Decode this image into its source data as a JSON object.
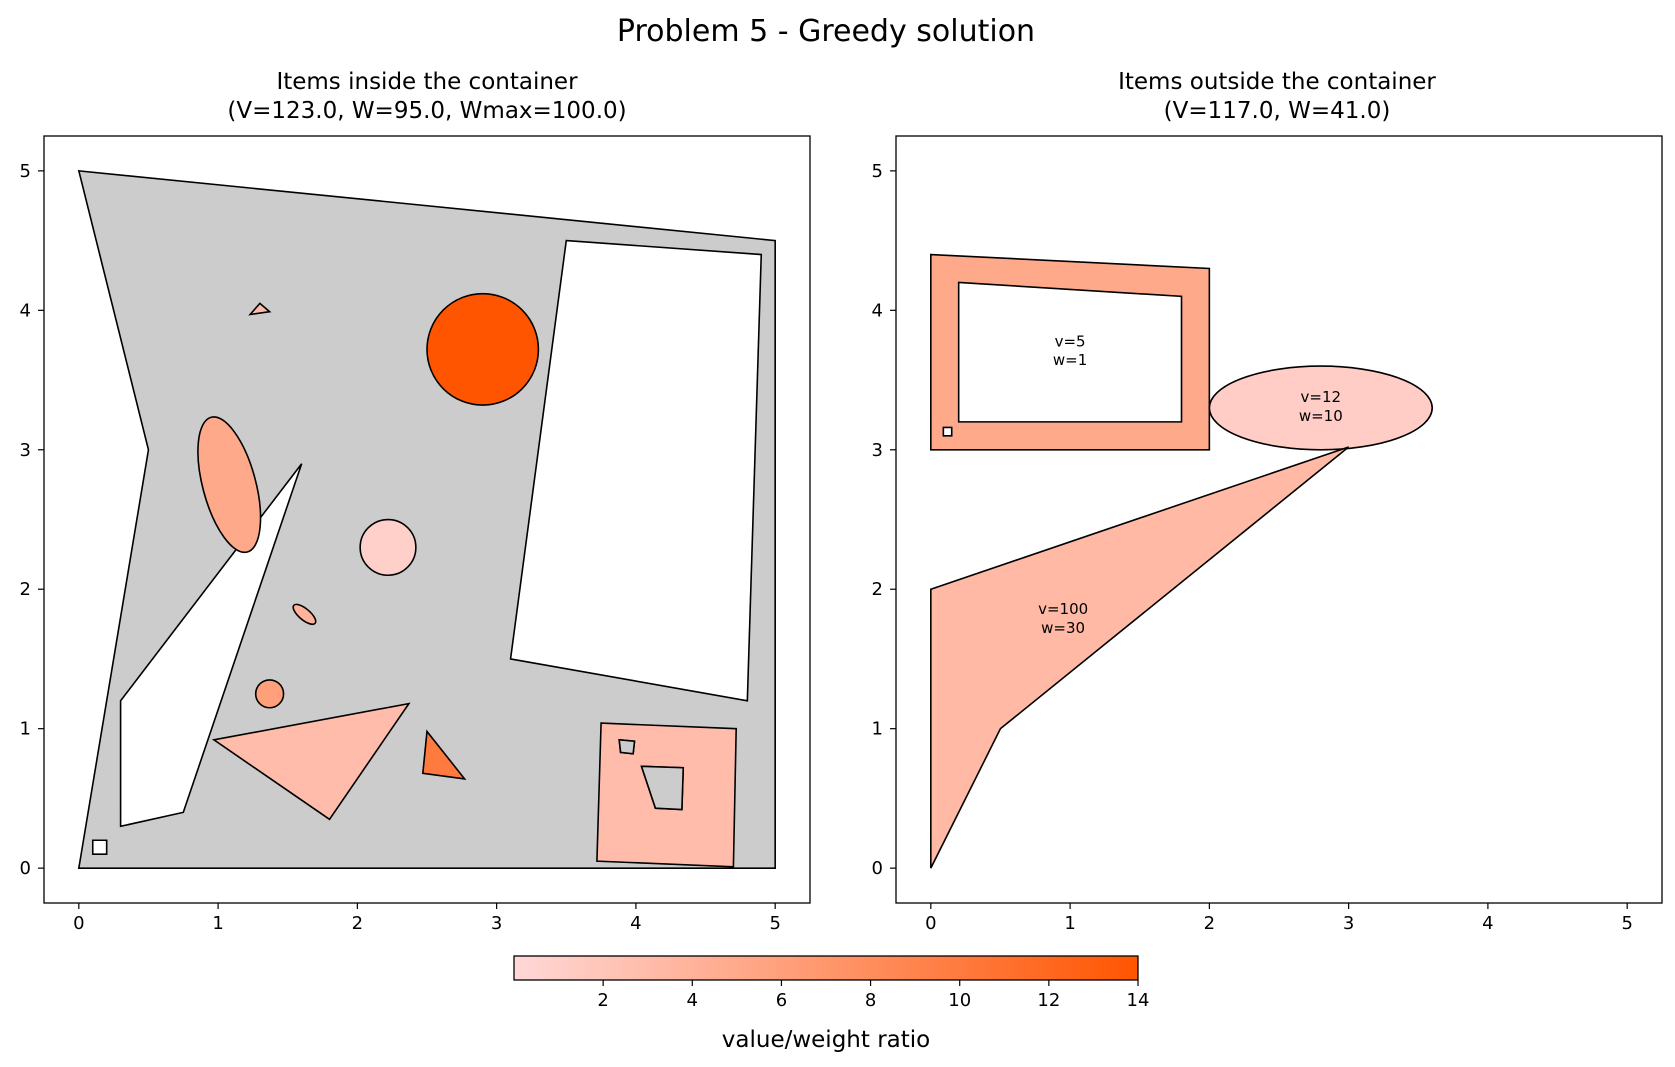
{
  "title": "Problem 5 - Greedy solution",
  "colorbar": {
    "label": "value/weight ratio",
    "ticks": [
      2,
      4,
      6,
      8,
      10,
      12,
      14
    ],
    "range": [
      0,
      14
    ],
    "color_low": "#ffd8d8",
    "color_high": "#ff5500"
  },
  "chart_data": [
    {
      "type": "other",
      "title_line1": "Items inside the container",
      "title_line2": "(V=123.0, W=95.0, Wmax=100.0)",
      "xlim": [
        -0.25,
        5.25
      ],
      "ylim": [
        -0.25,
        5.25
      ],
      "xticks": [
        0,
        1,
        2,
        3,
        4,
        5
      ],
      "yticks": [
        0,
        1,
        2,
        3,
        4,
        5
      ],
      "container": {
        "fill": "#cccccc",
        "outer": [
          [
            0,
            5
          ],
          [
            0.5,
            3
          ],
          [
            0,
            0
          ],
          [
            5,
            0
          ],
          [
            5,
            4.5
          ]
        ],
        "holes": [
          [
            [
              0.3,
              1.2
            ],
            [
              0.3,
              0.3
            ],
            [
              0.75,
              0.4
            ],
            [
              1.6,
              2.9
            ]
          ],
          [
            [
              3.5,
              4.5
            ],
            [
              4.9,
              4.4
            ],
            [
              4.8,
              1.2
            ],
            [
              3.1,
              1.5
            ]
          ]
        ]
      },
      "items": [
        {
          "shape": "circle",
          "center": [
            2.9,
            3.72
          ],
          "r": 0.4,
          "ratio": 14
        },
        {
          "shape": "circle",
          "center": [
            2.22,
            2.3
          ],
          "r": 0.2,
          "ratio": 1
        },
        {
          "shape": "circle",
          "center": [
            1.37,
            1.25
          ],
          "r": 0.1,
          "ratio": 6
        },
        {
          "shape": "ellipse",
          "center": [
            1.08,
            2.75
          ],
          "rx": 0.19,
          "ry": 0.5,
          "angle": 15,
          "ratio": 5
        },
        {
          "shape": "ellipse",
          "center": [
            1.62,
            1.82
          ],
          "rx": 0.1,
          "ry": 0.04,
          "angle": -40,
          "ratio": 4
        },
        {
          "shape": "polygon",
          "points": [
            [
              1.23,
              3.97
            ],
            [
              1.37,
              3.99
            ],
            [
              1.3,
              4.05
            ]
          ],
          "ratio": 3
        },
        {
          "shape": "polygon",
          "points": [
            [
              0.97,
              0.92
            ],
            [
              2.37,
              1.18
            ],
            [
              1.8,
              0.35
            ]
          ],
          "ratio": 3
        },
        {
          "shape": "polygon",
          "points": [
            [
              2.5,
              0.98
            ],
            [
              2.47,
              0.68
            ],
            [
              2.77,
              0.64
            ]
          ],
          "ratio": 10
        },
        {
          "shape": "polygon",
          "points": [
            [
              3.75,
              1.04
            ],
            [
              4.72,
              1.0
            ],
            [
              4.7,
              0.01
            ],
            [
              3.72,
              0.05
            ]
          ],
          "ratio": 3,
          "holes": [
            [
              [
                3.88,
                0.92
              ],
              [
                3.99,
                0.91
              ],
              [
                3.98,
                0.82
              ],
              [
                3.89,
                0.83
              ]
            ],
            [
              [
                4.04,
                0.73
              ],
              [
                4.34,
                0.72
              ],
              [
                4.33,
                0.42
              ],
              [
                4.14,
                0.43
              ]
            ]
          ]
        },
        {
          "shape": "polygon",
          "points": [
            [
              4.04,
              0.73
            ],
            [
              4.34,
              0.72
            ],
            [
              4.33,
              0.42
            ],
            [
              4.14,
              0.43
            ]
          ],
          "fill": "#cccccc"
        },
        {
          "shape": "polygon",
          "points": [
            [
              3.88,
              0.92
            ],
            [
              3.99,
              0.91
            ],
            [
              3.98,
              0.82
            ],
            [
              3.89,
              0.83
            ]
          ],
          "fill": "#cccccc"
        },
        {
          "shape": "polygon",
          "points": [
            [
              0.1,
              0.2
            ],
            [
              0.2,
              0.2
            ],
            [
              0.2,
              0.1
            ],
            [
              0.1,
              0.1
            ]
          ],
          "fill": "#ffffff"
        }
      ]
    },
    {
      "type": "other",
      "title_line1": "Items outside the container",
      "title_line2": "(V=117.0, W=41.0)",
      "xlim": [
        -0.25,
        5.25
      ],
      "ylim": [
        -0.25,
        5.25
      ],
      "xticks": [
        0,
        1,
        2,
        3,
        4,
        5
      ],
      "yticks": [
        0,
        1,
        2,
        3,
        4,
        5
      ],
      "items": [
        {
          "shape": "polygon",
          "points": [
            [
              0,
              4.4
            ],
            [
              2,
              4.3
            ],
            [
              2,
              3
            ],
            [
              0,
              3
            ]
          ],
          "ratio": 5,
          "holes": [
            [
              [
                0.2,
                4.2
              ],
              [
                1.8,
                4.1
              ],
              [
                1.8,
                3.2
              ],
              [
                0.2,
                3.2
              ]
            ]
          ]
        },
        {
          "shape": "ellipse",
          "center": [
            2.8,
            3.3
          ],
          "rx": 0.8,
          "ry": 0.3,
          "angle": 0,
          "ratio": 1.2
        },
        {
          "shape": "polygon",
          "points": [
            [
              0,
              2
            ],
            [
              3,
              3.02
            ],
            [
              0.5,
              1
            ],
            [
              0,
              0
            ]
          ],
          "ratio": 3.33
        },
        {
          "shape": "polygon",
          "points": [
            [
              0.09,
              3.16
            ],
            [
              0.15,
              3.16
            ],
            [
              0.15,
              3.1
            ],
            [
              0.09,
              3.1
            ]
          ],
          "fill": "#ffffff"
        }
      ],
      "labels": [
        {
          "x": 1.0,
          "y": 3.72,
          "lines": [
            "v=5",
            "w=1"
          ]
        },
        {
          "x": 2.8,
          "y": 3.32,
          "lines": [
            "v=12",
            "w=10"
          ]
        },
        {
          "x": 0.95,
          "y": 1.8,
          "lines": [
            "v=100",
            "w=30"
          ]
        }
      ]
    }
  ]
}
